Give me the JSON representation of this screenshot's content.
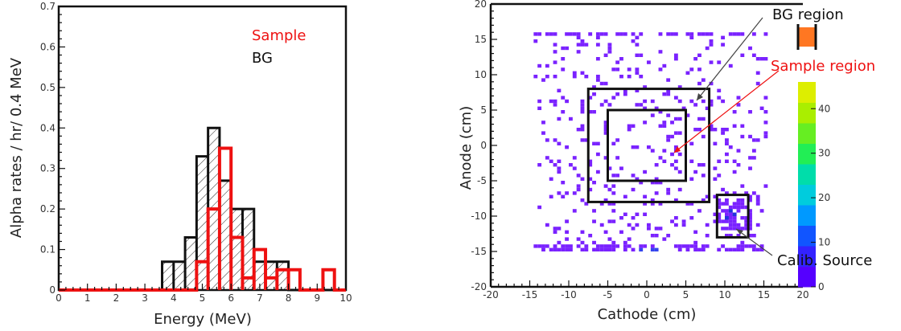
{
  "chart_data": [
    {
      "type": "histogram",
      "xlabel": "Energy (MeV)",
      "ylabel": "Alpha rates / hr/ 0.4 MeV",
      "xlim": [
        0,
        10
      ],
      "ylim": [
        0,
        0.7
      ],
      "xticks": [
        "0",
        "1",
        "2",
        "3",
        "4",
        "5",
        "6",
        "7",
        "8",
        "9",
        "10"
      ],
      "yticks": [
        "0",
        "0.1",
        "0.2",
        "0.3",
        "0.4",
        "0.5",
        "0.6",
        "0.7"
      ],
      "bin_width": 0.4,
      "legend_position": "top-right",
      "series": [
        {
          "name": "Sample",
          "color": "#ee1111",
          "bins": [
            {
              "x0": 4.8,
              "x1": 5.2,
              "y": 0.07
            },
            {
              "x0": 5.2,
              "x1": 5.6,
              "y": 0.2
            },
            {
              "x0": 5.6,
              "x1": 6.0,
              "y": 0.35
            },
            {
              "x0": 6.0,
              "x1": 6.4,
              "y": 0.13
            },
            {
              "x0": 6.4,
              "x1": 6.8,
              "y": 0.03
            },
            {
              "x0": 6.8,
              "x1": 7.2,
              "y": 0.1
            },
            {
              "x0": 7.2,
              "x1": 7.6,
              "y": 0.03
            },
            {
              "x0": 7.6,
              "x1": 8.0,
              "y": 0.05
            },
            {
              "x0": 8.0,
              "x1": 8.4,
              "y": 0.05
            },
            {
              "x0": 9.2,
              "x1": 9.6,
              "y": 0.05
            }
          ]
        },
        {
          "name": "BG",
          "color": "#111111",
          "hatched": true,
          "bins": [
            {
              "x0": 3.6,
              "x1": 4.0,
              "y": 0.07
            },
            {
              "x0": 4.0,
              "x1": 4.4,
              "y": 0.07
            },
            {
              "x0": 4.4,
              "x1": 4.8,
              "y": 0.13
            },
            {
              "x0": 4.8,
              "x1": 5.2,
              "y": 0.33
            },
            {
              "x0": 5.2,
              "x1": 5.6,
              "y": 0.4
            },
            {
              "x0": 5.6,
              "x1": 6.0,
              "y": 0.27
            },
            {
              "x0": 6.0,
              "x1": 6.4,
              "y": 0.2
            },
            {
              "x0": 6.4,
              "x1": 6.8,
              "y": 0.2
            },
            {
              "x0": 6.8,
              "x1": 7.2,
              "y": 0.07
            },
            {
              "x0": 7.2,
              "x1": 7.6,
              "y": 0.07
            },
            {
              "x0": 7.6,
              "x1": 8.0,
              "y": 0.07
            }
          ]
        }
      ]
    },
    {
      "type": "heatmap",
      "xlabel": "Cathode (cm)",
      "ylabel": "Anode (cm)",
      "xlim": [
        -20,
        20
      ],
      "ylim": [
        -20,
        20
      ],
      "xticks": [
        "-20",
        "-15",
        "-10",
        "-5",
        "0",
        "5",
        "10",
        "15",
        "20"
      ],
      "yticks": [
        "-20",
        "-15",
        "-10",
        "-5",
        "0",
        "5",
        "10",
        "15",
        "20"
      ],
      "colorbar_ticks": [
        "0",
        "10",
        "20",
        "30",
        "40"
      ],
      "cell_color": "#7a22ff",
      "regions": [
        {
          "label": "BG region",
          "x0": -7.5,
          "x1": 8,
          "y0": -8,
          "y1": 8,
          "color": "#111111"
        },
        {
          "label": "Sample region",
          "x0": -5,
          "x1": 5,
          "y0": -5,
          "y1": 5,
          "color": "#ee1111"
        },
        {
          "label": "Calib. Source",
          "x0": 9,
          "x1": 13,
          "y0": -13,
          "y1": -7,
          "color": "#111111"
        }
      ]
    }
  ]
}
